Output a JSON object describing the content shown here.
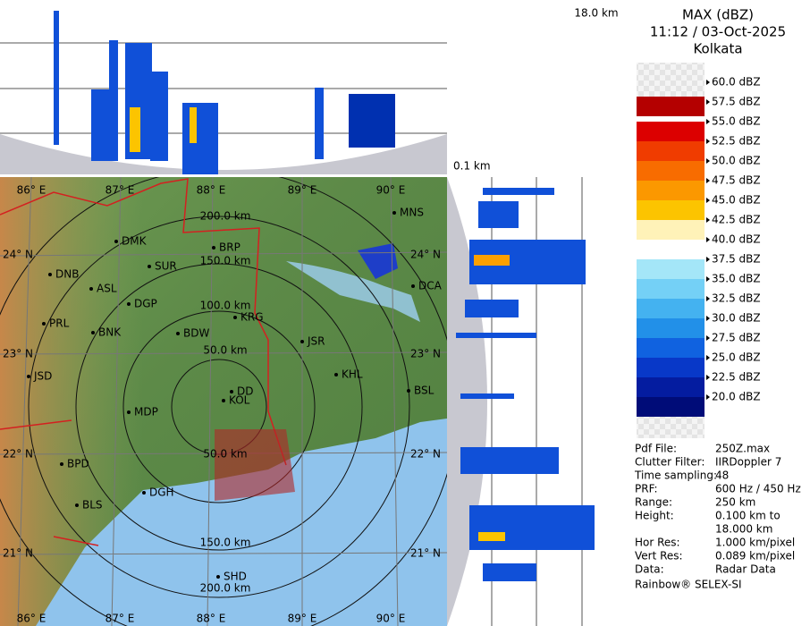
{
  "header": {
    "title": "MAX (dBZ)",
    "time": "11:12 / 03-Oct-2025",
    "station": "Kolkata"
  },
  "profile": {
    "top_height": "18.0 km",
    "bottom_height": "0.1 km"
  },
  "legend": [
    {
      "label": "60.0 dBZ",
      "color": "#b40000"
    },
    {
      "label": "57.5 dBZ",
      "color": "#dc0000"
    },
    {
      "label": "55.0 dBZ",
      "color": "#f03c00"
    },
    {
      "label": "52.5 dBZ",
      "color": "#f86c00"
    },
    {
      "label": "50.0 dBZ",
      "color": "#fb9800"
    },
    {
      "label": "47.5 dBZ",
      "color": "#fcc400"
    },
    {
      "label": "45.0 dBZ",
      "color": "#fff2b8"
    },
    {
      "label": "42.5 dBZ",
      "color": "#ffffff"
    },
    {
      "label": "40.0 dBZ",
      "color": "#a4e6f8"
    },
    {
      "label": "37.5 dBZ",
      "color": "#74d0f6"
    },
    {
      "label": "35.0 dBZ",
      "color": "#44b2f0"
    },
    {
      "label": "32.5 dBZ",
      "color": "#2290e8"
    },
    {
      "label": "30.0 dBZ",
      "color": "#1062e0"
    },
    {
      "label": "27.5 dBZ",
      "color": "#0838c8"
    },
    {
      "label": "25.0 dBZ",
      "color": "#041ca0"
    },
    {
      "label": "22.5 dBZ",
      "color": "#000c78"
    },
    {
      "label": "20.0 dBZ"
    }
  ],
  "info": [
    {
      "label": "Pdf File:",
      "value": [
        "250Z.max"
      ]
    },
    {
      "label": "Clutter Filter:",
      "value": [
        "IIRDoppler 7"
      ]
    },
    {
      "label": "Time sampling:",
      "value": [
        "48"
      ]
    },
    {
      "label": "PRF:",
      "value": [
        "600 Hz / 450 Hz"
      ]
    },
    {
      "label": "Range:",
      "value": [
        "250 km"
      ]
    },
    {
      "label": "Height:",
      "value": [
        "0.100 km to",
        "18.000 km"
      ]
    },
    {
      "label": "Hor Res:",
      "value": [
        "1.000 km/pixel"
      ]
    },
    {
      "label": "Vert Res:",
      "value": [
        "0.089 km/pixel"
      ]
    },
    {
      "label": "Data:",
      "value": [
        "Radar Data"
      ]
    }
  ],
  "footer": "Rainbow® SELEX-SI",
  "longitudes": [
    "86° E",
    "87° E",
    "88° E",
    "89° E",
    "90° E"
  ],
  "latitudes": [
    "24° N",
    "23° N",
    "22° N",
    "21° N"
  ],
  "rings": [
    "50.0 km",
    "100.0 km",
    "150.0 km",
    "200.0 km"
  ],
  "cities": [
    "MNS",
    "BRP",
    "DMK",
    "SUR",
    "DNB",
    "ASL",
    "DGP",
    "KRG",
    "DCA",
    "PRL",
    "BNK",
    "BDW",
    "JSR",
    "KHL",
    "JSD",
    "BSL",
    "DD",
    "KOL",
    "MDP",
    "BPD",
    "DGH",
    "BLS",
    "SHD"
  ]
}
